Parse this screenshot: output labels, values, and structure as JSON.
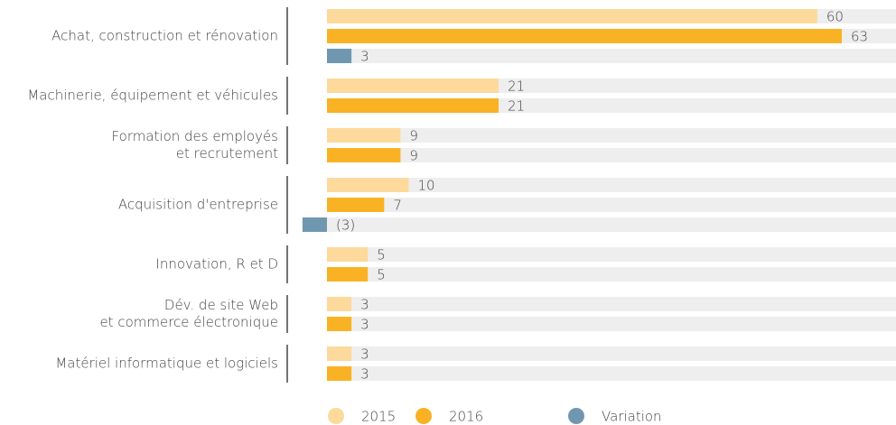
{
  "chart_data": {
    "type": "bar",
    "orientation": "horizontal",
    "categories": [
      "Achat, construction et rénovation",
      "Machinerie, équipement et véhicules",
      "Formation des employés\net recrutement",
      "Acquisition d'entreprise",
      "Innovation, R et D",
      "Dév. de site Web\net commerce électronique",
      "Matériel informatique et logiciels"
    ],
    "series": [
      {
        "name": "2015",
        "color": "#fdd99b",
        "values": [
          60,
          21,
          9,
          10,
          5,
          3,
          3
        ]
      },
      {
        "name": "2016",
        "color": "#f9b224",
        "values": [
          63,
          21,
          9,
          7,
          5,
          3,
          3
        ]
      },
      {
        "name": "Variation",
        "color": "#6f98b0",
        "values": [
          3,
          null,
          null,
          -3,
          null,
          null,
          null
        ],
        "value_labels": [
          "3",
          null,
          null,
          "(3)",
          null,
          null,
          null
        ]
      }
    ],
    "legend": "bottom"
  }
}
